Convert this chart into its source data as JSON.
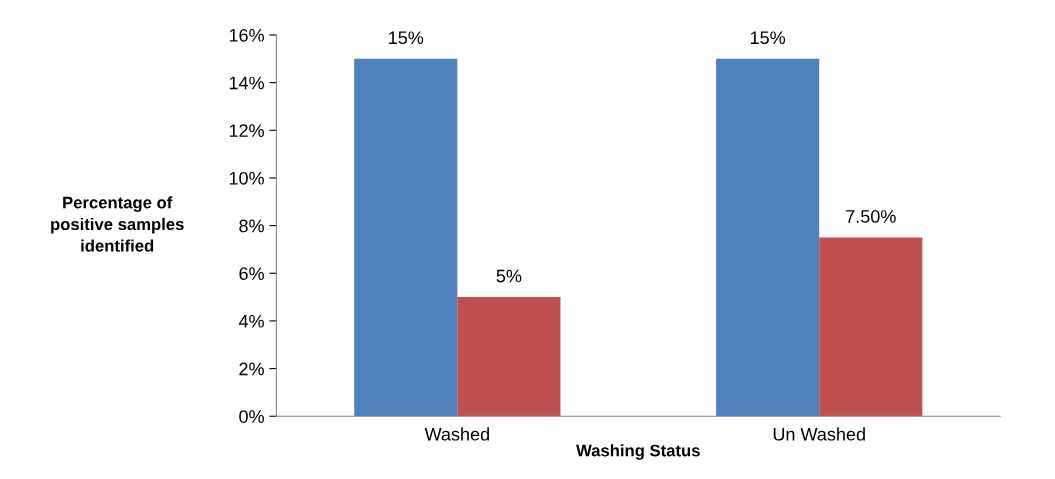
{
  "chart_data": {
    "type": "bar",
    "xlabel": "Washing Status",
    "ylabel": "Percentage of\npositive samples\nidentified",
    "categories": [
      "Washed",
      "Un Washed"
    ],
    "series": [
      {
        "color": "#4f81bd",
        "values": [
          15,
          15
        ],
        "value_labels": [
          "15%",
          "15%"
        ]
      },
      {
        "color": "#c0504d",
        "values": [
          5,
          7.5
        ],
        "value_labels": [
          "5%",
          "7.50%"
        ]
      }
    ],
    "ylim": [
      0,
      16
    ],
    "yticks": [
      {
        "value": 0,
        "label": "0%"
      },
      {
        "value": 2,
        "label": "2%"
      },
      {
        "value": 4,
        "label": "4%"
      },
      {
        "value": 6,
        "label": "6%"
      },
      {
        "value": 8,
        "label": "8%"
      },
      {
        "value": 10,
        "label": "10%"
      },
      {
        "value": 12,
        "label": "12%"
      },
      {
        "value": 14,
        "label": "14%"
      },
      {
        "value": 16,
        "label": "16%"
      }
    ],
    "grid": false
  }
}
